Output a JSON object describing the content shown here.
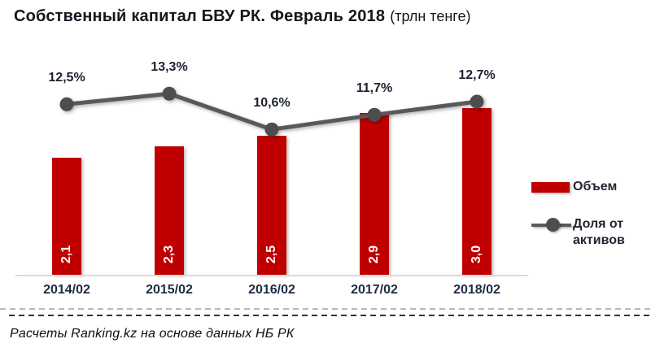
{
  "title": {
    "main": "Собственный капитал БВУ РК. Февраль 2018",
    "unit": "(трлн тенге)"
  },
  "chart_data": {
    "type": "combo",
    "categories": [
      "2014/02",
      "2015/02",
      "2016/02",
      "2017/02",
      "2018/02"
    ],
    "series": [
      {
        "name": "Объем",
        "type": "bar",
        "values": [
          2.1,
          2.3,
          2.5,
          2.9,
          3.0
        ],
        "labels": [
          "2,1",
          "2,3",
          "2,5",
          "2,9",
          "3,0"
        ],
        "color": "#C00000"
      },
      {
        "name": "Доля от активов",
        "type": "line",
        "values": [
          12.5,
          13.3,
          10.6,
          11.7,
          12.7
        ],
        "labels": [
          "12,5%",
          "13,3%",
          "10,6%",
          "11,7%",
          "12,7%"
        ],
        "color": "#595959",
        "marker_color": "#4d4d4d"
      }
    ],
    "title": "Собственный капитал БВУ РК. Февраль 2018 (трлн тенге)",
    "xlabel": "",
    "ylabel": "",
    "primary_ylim": [
      0,
      4.1
    ],
    "secondary_ylim": [
      0,
      17
    ],
    "grid": false,
    "axes_visible": false,
    "legend_position": "right",
    "bar_value_labels_rotated": true
  },
  "legend": {
    "item_bar_label": "Объем",
    "item_line_label": "Доля от активов"
  },
  "footer": {
    "source": "Расчеты Ranking.kz на основе данных НБ РК"
  },
  "colors": {
    "bar": "#C00000",
    "line": "#595959",
    "marker": "#4d4d4d",
    "axis": "#d9d9d9",
    "text_dark": "#1f2430"
  }
}
